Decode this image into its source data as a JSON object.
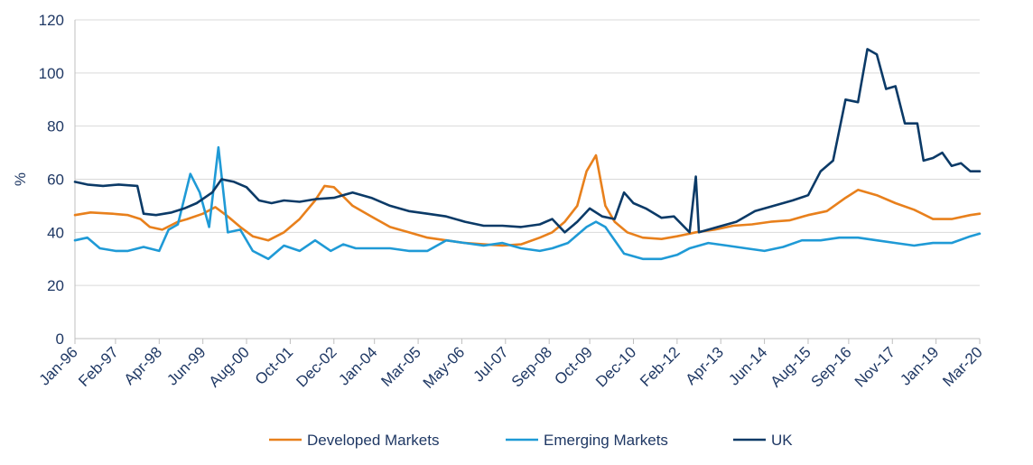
{
  "chart_data": {
    "type": "line",
    "ylabel": "%",
    "ylim": [
      0,
      120
    ],
    "yticks": [
      "0",
      "20",
      "40",
      "60",
      "80",
      "100",
      "120"
    ],
    "xlim": [
      "Jan-96",
      "Mar-20"
    ],
    "xticks": [
      "Jan-96",
      "Feb-97",
      "Apr-98",
      "Jun-99",
      "Aug-00",
      "Oct-01",
      "Dec-02",
      "Jan-04",
      "Mar-05",
      "May-06",
      "Jul-07",
      "Sep-08",
      "Oct-09",
      "Dec-10",
      "Feb-12",
      "Apr-13",
      "Jun-14",
      "Aug-15",
      "Sep-16",
      "Nov-17",
      "Jan-19",
      "Mar-20"
    ],
    "grid": "horizontal",
    "legend": "bottom",
    "series": [
      {
        "name": "Developed Markets",
        "color": "#E8801C",
        "points": [
          [
            "1996-01",
            46.5
          ],
          [
            "1996-06",
            47.5
          ],
          [
            "1997-01",
            47
          ],
          [
            "1997-06",
            46.5
          ],
          [
            "1997-10",
            45
          ],
          [
            "1998-01",
            42
          ],
          [
            "1998-05",
            41
          ],
          [
            "1998-10",
            44
          ],
          [
            "1999-01",
            45
          ],
          [
            "1999-06",
            47
          ],
          [
            "1999-10",
            49.5
          ],
          [
            "2000-02",
            46
          ],
          [
            "2000-06",
            42
          ],
          [
            "2000-10",
            38.5
          ],
          [
            "2001-03",
            37
          ],
          [
            "2001-08",
            40
          ],
          [
            "2002-01",
            45
          ],
          [
            "2002-06",
            52
          ],
          [
            "2002-09",
            57.5
          ],
          [
            "2002-12",
            57
          ],
          [
            "2003-06",
            50
          ],
          [
            "2003-12",
            46
          ],
          [
            "2004-06",
            42
          ],
          [
            "2004-12",
            40
          ],
          [
            "2005-06",
            38
          ],
          [
            "2005-12",
            37
          ],
          [
            "2006-06",
            36
          ],
          [
            "2006-12",
            35.5
          ],
          [
            "2007-06",
            35
          ],
          [
            "2007-12",
            35.5
          ],
          [
            "2008-06",
            38
          ],
          [
            "2008-10",
            40
          ],
          [
            "2009-02",
            44
          ],
          [
            "2009-06",
            50
          ],
          [
            "2009-09",
            63
          ],
          [
            "2009-12",
            69
          ],
          [
            "2010-03",
            50
          ],
          [
            "2010-06",
            44
          ],
          [
            "2010-10",
            40
          ],
          [
            "2011-03",
            38
          ],
          [
            "2011-09",
            37.5
          ],
          [
            "2012-02",
            38.5
          ],
          [
            "2012-08",
            40
          ],
          [
            "2013-02",
            41
          ],
          [
            "2013-08",
            42.5
          ],
          [
            "2014-02",
            43
          ],
          [
            "2014-08",
            44
          ],
          [
            "2015-02",
            44.5
          ],
          [
            "2015-08",
            46.5
          ],
          [
            "2016-02",
            48
          ],
          [
            "2016-08",
            53
          ],
          [
            "2016-12",
            56
          ],
          [
            "2017-06",
            54
          ],
          [
            "2017-12",
            51
          ],
          [
            "2018-06",
            48.5
          ],
          [
            "2018-12",
            45
          ],
          [
            "2019-06",
            45
          ],
          [
            "2019-12",
            46.5
          ],
          [
            "2020-03",
            47
          ]
        ]
      },
      {
        "name": "Emerging Markets",
        "color": "#1F9AD6",
        "points": [
          [
            "1996-01",
            37
          ],
          [
            "1996-05",
            38
          ],
          [
            "1996-09",
            34
          ],
          [
            "1997-02",
            33
          ],
          [
            "1997-06",
            33
          ],
          [
            "1997-11",
            34.5
          ],
          [
            "1998-04",
            33
          ],
          [
            "1998-07",
            41
          ],
          [
            "1998-10",
            43
          ],
          [
            "1999-02",
            62
          ],
          [
            "1999-05",
            55
          ],
          [
            "1999-08",
            42
          ],
          [
            "1999-11",
            72
          ],
          [
            "2000-02",
            40
          ],
          [
            "2000-06",
            41
          ],
          [
            "2000-10",
            33
          ],
          [
            "2001-03",
            30
          ],
          [
            "2001-08",
            35
          ],
          [
            "2002-01",
            33
          ],
          [
            "2002-06",
            37
          ],
          [
            "2002-11",
            33
          ],
          [
            "2003-03",
            35.5
          ],
          [
            "2003-07",
            34
          ],
          [
            "2003-12",
            34
          ],
          [
            "2004-06",
            34
          ],
          [
            "2004-12",
            33
          ],
          [
            "2005-06",
            33
          ],
          [
            "2005-12",
            37
          ],
          [
            "2006-06",
            36
          ],
          [
            "2006-12",
            35
          ],
          [
            "2007-06",
            36
          ],
          [
            "2007-12",
            34
          ],
          [
            "2008-06",
            33
          ],
          [
            "2008-10",
            34
          ],
          [
            "2009-03",
            36
          ],
          [
            "2009-09",
            42
          ],
          [
            "2009-12",
            44
          ],
          [
            "2010-03",
            42
          ],
          [
            "2010-09",
            32
          ],
          [
            "2011-03",
            30
          ],
          [
            "2011-09",
            30
          ],
          [
            "2012-02",
            31.5
          ],
          [
            "2012-06",
            34
          ],
          [
            "2012-12",
            36
          ],
          [
            "2013-06",
            35
          ],
          [
            "2013-12",
            34
          ],
          [
            "2014-06",
            33
          ],
          [
            "2014-12",
            34.5
          ],
          [
            "2015-06",
            37
          ],
          [
            "2015-12",
            37
          ],
          [
            "2016-06",
            38
          ],
          [
            "2016-12",
            38
          ],
          [
            "2017-06",
            37
          ],
          [
            "2017-12",
            36
          ],
          [
            "2018-06",
            35
          ],
          [
            "2018-12",
            36
          ],
          [
            "2019-06",
            36
          ],
          [
            "2019-12",
            38.5
          ],
          [
            "2020-03",
            39.5
          ]
        ]
      },
      {
        "name": "UK",
        "color": "#0B3A67",
        "points": [
          [
            "1996-01",
            59
          ],
          [
            "1996-05",
            58
          ],
          [
            "1996-10",
            57.5
          ],
          [
            "1997-03",
            58
          ],
          [
            "1997-09",
            57.5
          ],
          [
            "1997-11",
            47
          ],
          [
            "1998-03",
            46.5
          ],
          [
            "1998-08",
            47.5
          ],
          [
            "1998-12",
            49
          ],
          [
            "1999-04",
            51
          ],
          [
            "1999-09",
            55
          ],
          [
            "1999-12",
            60
          ],
          [
            "2000-04",
            59
          ],
          [
            "2000-08",
            57
          ],
          [
            "2000-12",
            52
          ],
          [
            "2001-04",
            51
          ],
          [
            "2001-08",
            52
          ],
          [
            "2002-01",
            51.5
          ],
          [
            "2002-06",
            52.5
          ],
          [
            "2002-12",
            53
          ],
          [
            "2003-06",
            55
          ],
          [
            "2003-12",
            53
          ],
          [
            "2004-06",
            50
          ],
          [
            "2004-12",
            48
          ],
          [
            "2005-06",
            47
          ],
          [
            "2005-12",
            46
          ],
          [
            "2006-06",
            44
          ],
          [
            "2006-12",
            42.5
          ],
          [
            "2007-06",
            42.5
          ],
          [
            "2007-12",
            42
          ],
          [
            "2008-06",
            43
          ],
          [
            "2008-10",
            45
          ],
          [
            "2009-02",
            40
          ],
          [
            "2009-06",
            44
          ],
          [
            "2009-10",
            49
          ],
          [
            "2010-02",
            46
          ],
          [
            "2010-06",
            45
          ],
          [
            "2010-09",
            55
          ],
          [
            "2010-12",
            51
          ],
          [
            "2011-04",
            49
          ],
          [
            "2011-09",
            45.5
          ],
          [
            "2012-01",
            46
          ],
          [
            "2012-06",
            40
          ],
          [
            "2012-08",
            61
          ],
          [
            "2012-09",
            40
          ],
          [
            "2013-03",
            42
          ],
          [
            "2013-09",
            44
          ],
          [
            "2014-03",
            48
          ],
          [
            "2014-09",
            50
          ],
          [
            "2015-03",
            52
          ],
          [
            "2015-08",
            54
          ],
          [
            "2015-12",
            63
          ],
          [
            "2016-04",
            67
          ],
          [
            "2016-08",
            90
          ],
          [
            "2016-12",
            89
          ],
          [
            "2017-03",
            109
          ],
          [
            "2017-06",
            107
          ],
          [
            "2017-09",
            94
          ],
          [
            "2017-12",
            95
          ],
          [
            "2018-03",
            81
          ],
          [
            "2018-07",
            81
          ],
          [
            "2018-09",
            67
          ],
          [
            "2018-12",
            68
          ],
          [
            "2019-03",
            70
          ],
          [
            "2019-06",
            65
          ],
          [
            "2019-09",
            66
          ],
          [
            "2019-12",
            63
          ],
          [
            "2020-03",
            63
          ]
        ]
      }
    ]
  }
}
